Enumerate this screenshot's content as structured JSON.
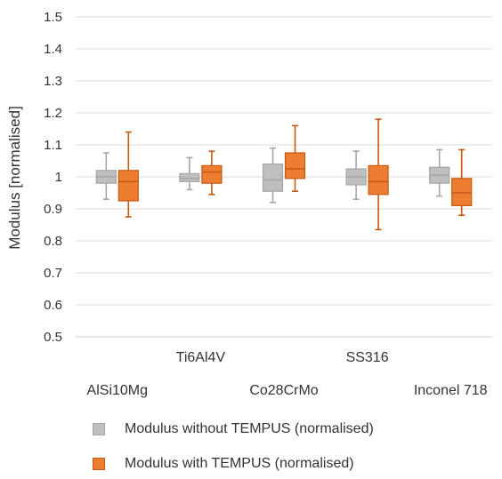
{
  "chart_data": {
    "type": "boxplot",
    "ylabel": "Modulus [normalised]",
    "ylim": [
      0.5,
      1.5
    ],
    "yticks": [
      "0.5",
      "0.6",
      "0.7",
      "0.8",
      "0.9",
      "1",
      "1.1",
      "1.2",
      "1.3",
      "1.4",
      "1.5"
    ],
    "grid": true,
    "legend_position": "bottom",
    "categories": [
      "AlSi10Mg",
      "Ti6Al4V",
      "Co28CrMo",
      "SS316",
      "Inconel 718"
    ],
    "series": [
      {
        "name": "Modulus without TEMPUS (normalised)",
        "color": "#bfbfbf",
        "stroke": "#a6a6a6",
        "boxes": [
          {
            "min": 0.93,
            "q1": 0.98,
            "median": 1.0,
            "q3": 1.02,
            "max": 1.075
          },
          {
            "min": 0.96,
            "q1": 0.985,
            "median": 0.995,
            "q3": 1.01,
            "max": 1.06
          },
          {
            "min": 0.92,
            "q1": 0.955,
            "median": 0.99,
            "q3": 1.04,
            "max": 1.09
          },
          {
            "min": 0.93,
            "q1": 0.975,
            "median": 1.0,
            "q3": 1.025,
            "max": 1.08
          },
          {
            "min": 0.94,
            "q1": 0.98,
            "median": 1.005,
            "q3": 1.03,
            "max": 1.085
          }
        ]
      },
      {
        "name": "Modulus with TEMPUS (normalised)",
        "color": "#ed7d31",
        "stroke": "#c55a11",
        "boxes": [
          {
            "min": 0.875,
            "q1": 0.925,
            "median": 0.985,
            "q3": 1.02,
            "max": 1.14
          },
          {
            "min": 0.945,
            "q1": 0.98,
            "median": 1.015,
            "q3": 1.035,
            "max": 1.08
          },
          {
            "min": 0.955,
            "q1": 0.995,
            "median": 1.025,
            "q3": 1.075,
            "max": 1.16
          },
          {
            "min": 0.835,
            "q1": 0.945,
            "median": 0.985,
            "q3": 1.035,
            "max": 1.18
          },
          {
            "min": 0.88,
            "q1": 0.91,
            "median": 0.95,
            "q3": 0.995,
            "max": 1.085
          }
        ]
      }
    ]
  }
}
